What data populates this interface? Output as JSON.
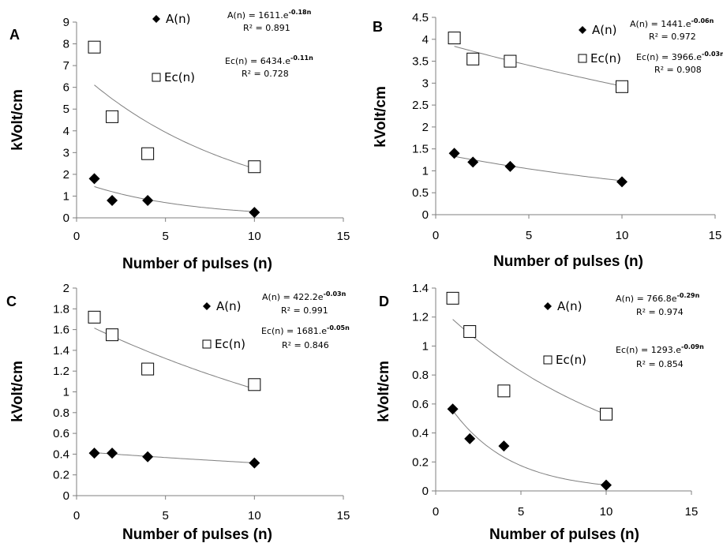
{
  "chart_data": [
    {
      "panel": "A",
      "type": "scatter",
      "xlabel": "Number of pulses (n)",
      "ylabel": "kVolt/cm",
      "xlim": [
        0,
        15
      ],
      "ylim": [
        0,
        9
      ],
      "xticks": [
        "0",
        "5",
        "10",
        "15"
      ],
      "yticks": [
        "0",
        "1",
        "2",
        "3",
        "4",
        "5",
        "6",
        "7",
        "8",
        "9"
      ],
      "grid": false,
      "series": [
        {
          "name": "A(n)",
          "marker": "filled-diamond",
          "x": [
            1,
            2,
            4,
            10
          ],
          "y": [
            1.8,
            0.8,
            0.8,
            0.25
          ],
          "fit": {
            "a": 1611,
            "b": -0.18,
            "label": "A(n) = 1611.e",
            "exp": "-0.18n",
            "r2": "R² = 0.891"
          }
        },
        {
          "name": "Ec(n)",
          "marker": "open-square",
          "x": [
            1,
            2,
            4,
            10
          ],
          "y": [
            7.85,
            4.65,
            2.95,
            2.35
          ],
          "fit": {
            "a": 6434,
            "b": -0.11,
            "label": "Ec(n) = 6434.e",
            "exp": "-0.11n",
            "r2": "R² = 0.728"
          }
        }
      ]
    },
    {
      "panel": "B",
      "type": "scatter",
      "xlabel": "Number of pulses (n)",
      "ylabel": "kVolt/cm",
      "xlim": [
        0,
        15
      ],
      "ylim": [
        0,
        4.5
      ],
      "xticks": [
        "0",
        "5",
        "10",
        "15"
      ],
      "yticks": [
        "0",
        "0.5",
        "1",
        "1.5",
        "2",
        "2.5",
        "3",
        "3.5",
        "4",
        "4.5"
      ],
      "grid": false,
      "series": [
        {
          "name": "A(n)",
          "marker": "filled-diamond",
          "x": [
            1,
            2,
            4,
            10
          ],
          "y": [
            1.4,
            1.2,
            1.1,
            0.75
          ],
          "fit": {
            "a": 1441,
            "b": -0.06,
            "label": "A(n) = 1441.e",
            "exp": "-0.06n",
            "r2": "R² = 0.972"
          }
        },
        {
          "name": "Ec(n)",
          "marker": "open-square",
          "x": [
            1,
            2,
            4,
            10
          ],
          "y": [
            4.03,
            3.55,
            3.5,
            2.92
          ],
          "fit": {
            "a": 3966,
            "b": -0.03,
            "label": "Ec(n) = 3966.e",
            "exp": "-0.03n",
            "r2": "R² = 0.908"
          }
        }
      ]
    },
    {
      "panel": "C",
      "type": "scatter",
      "xlabel": "Number of pulses (n)",
      "ylabel": "kVolt/cm",
      "xlim": [
        0,
        15
      ],
      "ylim": [
        0,
        2
      ],
      "xticks": [
        "0",
        "5",
        "10",
        "15"
      ],
      "yticks": [
        "0",
        "0.2",
        "0.4",
        "0.6",
        "0.8",
        "1",
        "1.2",
        "1.4",
        "1.6",
        "1.8",
        "2"
      ],
      "grid": false,
      "series": [
        {
          "name": "A(n)",
          "marker": "filled-diamond",
          "x": [
            1,
            2,
            4,
            10
          ],
          "y": [
            0.41,
            0.41,
            0.375,
            0.315
          ],
          "fit": {
            "a": 422.2,
            "b": -0.03,
            "label": "A(n) = 422.2e",
            "exp": "-0.03n",
            "r2": "R² = 0.991"
          }
        },
        {
          "name": "Ec(n)",
          "marker": "open-square",
          "x": [
            1,
            2,
            4,
            10
          ],
          "y": [
            1.72,
            1.55,
            1.22,
            1.07
          ],
          "fit": {
            "a": 1681,
            "b": -0.05,
            "label": "Ec(n) = 1681.e",
            "exp": "-0.05n",
            "r2": "R² = 0.846"
          }
        }
      ]
    },
    {
      "panel": "D",
      "type": "scatter",
      "xlabel": "Number of pulses (n)",
      "ylabel": "kVolt/cm",
      "xlim": [
        0,
        15
      ],
      "ylim": [
        0,
        1.4
      ],
      "xticks": [
        "0",
        "5",
        "10",
        "15"
      ],
      "yticks": [
        "0",
        "0.2",
        "0.4",
        "0.6",
        "0.8",
        "1",
        "1.2",
        "1.4"
      ],
      "grid": false,
      "series": [
        {
          "name": "A(n)",
          "marker": "filled-diamond",
          "x": [
            1,
            2,
            4,
            10
          ],
          "y": [
            0.565,
            0.36,
            0.31,
            0.04
          ],
          "fit": {
            "a": 766.8,
            "b": -0.29,
            "label": "A(n) = 766.8e",
            "exp": "-0.29n",
            "r2": "R² = 0.974"
          }
        },
        {
          "name": "Ec(n)",
          "marker": "open-square",
          "x": [
            1,
            2,
            4,
            10
          ],
          "y": [
            1.33,
            1.1,
            0.69,
            0.53
          ],
          "fit": {
            "a": 1293,
            "b": -0.09,
            "label": "Ec(n) = 1293.e",
            "exp": "-0.09n",
            "r2": "R² = 0.854"
          }
        }
      ]
    }
  ]
}
